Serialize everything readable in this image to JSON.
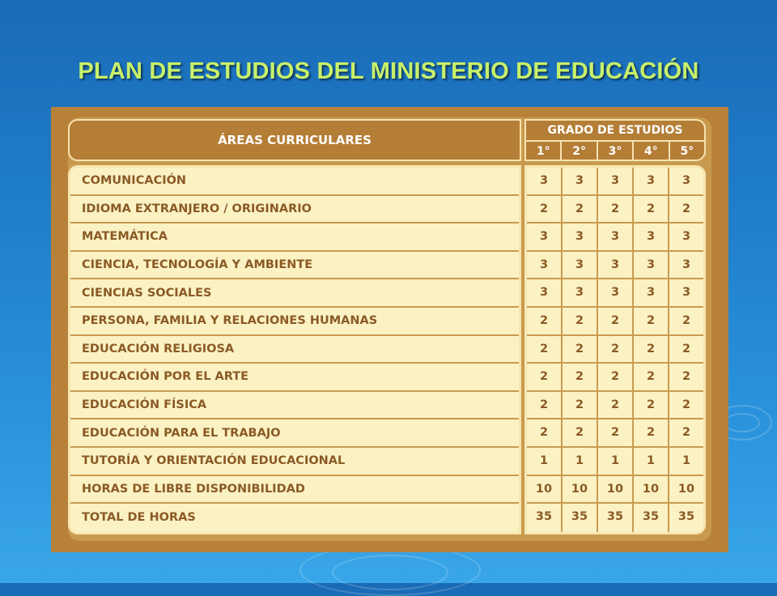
{
  "title": "PLAN DE ESTUDIOS DEL MINISTERIO DE EDUCACIÓN",
  "table": {
    "header_areas": "ÁREAS CURRICULARES",
    "header_grado": "GRADO DE ESTUDIOS",
    "grades": [
      "1°",
      "2°",
      "3°",
      "4°",
      "5°"
    ],
    "rows": [
      {
        "area": "COMUNICACIÓN",
        "hours": [
          "3",
          "3",
          "3",
          "3",
          "3"
        ]
      },
      {
        "area": "IDIOMA EXTRANJERO / ORIGINARIO",
        "hours": [
          "2",
          "2",
          "2",
          "2",
          "2"
        ]
      },
      {
        "area": "MATEMÁTICA",
        "hours": [
          "3",
          "3",
          "3",
          "3",
          "3"
        ]
      },
      {
        "area": "CIENCIA, TECNOLOGÍA Y AMBIENTE",
        "hours": [
          "3",
          "3",
          "3",
          "3",
          "3"
        ]
      },
      {
        "area": "CIENCIAS SOCIALES",
        "hours": [
          "3",
          "3",
          "3",
          "3",
          "3"
        ]
      },
      {
        "area": "PERSONA, FAMILIA Y RELACIONES HUMANAS",
        "hours": [
          "2",
          "2",
          "2",
          "2",
          "2"
        ]
      },
      {
        "area": "EDUCACIÓN RELIGIOSA",
        "hours": [
          "2",
          "2",
          "2",
          "2",
          "2"
        ]
      },
      {
        "area": "EDUCACIÓN POR EL ARTE",
        "hours": [
          "2",
          "2",
          "2",
          "2",
          "2"
        ]
      },
      {
        "area": "EDUCACIÓN FÍSICA",
        "hours": [
          "2",
          "2",
          "2",
          "2",
          "2"
        ]
      },
      {
        "area": "EDUCACIÓN PARA EL TRABAJO",
        "hours": [
          "2",
          "2",
          "2",
          "2",
          "2"
        ]
      },
      {
        "area": "TUTORÍA Y ORIENTACIÓN EDUCACIONAL",
        "hours": [
          "1",
          "1",
          "1",
          "1",
          "1"
        ]
      },
      {
        "area": "HORAS DE LIBRE DISPONIBILIDAD",
        "hours": [
          "10",
          "10",
          "10",
          "10",
          "10"
        ]
      },
      {
        "area": "TOTAL DE HORAS",
        "hours": [
          "35",
          "35",
          "35",
          "35",
          "35"
        ]
      }
    ]
  },
  "colors": {
    "background": "#1f7dc9",
    "title": "#c8f06a",
    "frame": "#b8813a",
    "header": "#b57e36",
    "cell_bg": "#fbf2c4",
    "cell_text": "#8b5a25"
  }
}
